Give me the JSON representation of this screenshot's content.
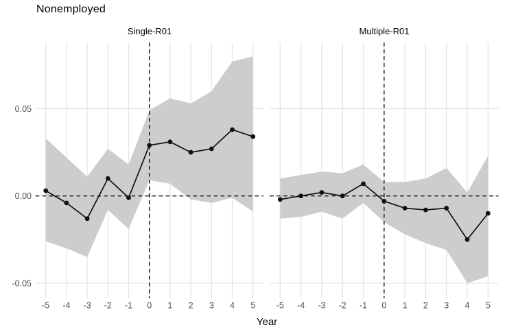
{
  "title": "Nonemployed",
  "xlabel": "Year",
  "colors": {
    "background": "#ffffff",
    "ribbon": "#cdcdcd",
    "line": "#111111",
    "point": "#111111",
    "grid": "#e5e5e5",
    "axis_text": "#4d4d4d",
    "label_text": "#000000",
    "reference_line": "#111111"
  },
  "axis": {
    "x_tick_labels": [
      "-5",
      "-4",
      "-3",
      "-2",
      "-1",
      "0",
      "1",
      "2",
      "3",
      "4",
      "5"
    ],
    "y_tick_labels": [
      "0.05",
      "0.00",
      "-0.05"
    ],
    "y_tick_values": [
      0.05,
      0,
      -0.05
    ],
    "xlim": [
      -5.5,
      5.5
    ],
    "ylim": [
      -0.0585,
      0.0875
    ],
    "grid": "major-only",
    "legend": "none"
  },
  "chart_data": [
    {
      "type": "line",
      "panel": "Single-R01",
      "x": [
        -5,
        -4,
        -3,
        -2,
        -1,
        0,
        1,
        2,
        3,
        4,
        5
      ],
      "estimate": [
        0.003,
        -0.004,
        -0.013,
        0.01,
        -0.001,
        0.029,
        0.031,
        0.025,
        0.027,
        0.038,
        0.034
      ],
      "ci_lower": [
        -0.026,
        -0.03,
        -0.035,
        -0.008,
        -0.019,
        0.009,
        0.007,
        -0.002,
        -0.004,
        -0.001,
        -0.009
      ],
      "ci_upper": [
        0.033,
        0.022,
        0.011,
        0.027,
        0.018,
        0.049,
        0.056,
        0.053,
        0.06,
        0.077,
        0.08
      ],
      "vline_x": 0,
      "hline_y": 0
    },
    {
      "type": "line",
      "panel": "Multiple-R01",
      "x": [
        -5,
        -4,
        -3,
        -2,
        -1,
        0,
        1,
        2,
        3,
        4,
        5
      ],
      "estimate": [
        -0.002,
        0.0,
        0.002,
        0.0,
        0.007,
        -0.003,
        -0.007,
        -0.008,
        -0.007,
        -0.025,
        -0.01
      ],
      "ci_lower": [
        -0.013,
        -0.012,
        -0.009,
        -0.013,
        -0.004,
        -0.015,
        -0.022,
        -0.027,
        -0.031,
        -0.05,
        -0.046
      ],
      "ci_upper": [
        0.01,
        0.012,
        0.014,
        0.013,
        0.018,
        0.008,
        0.008,
        0.01,
        0.016,
        0.002,
        0.023
      ],
      "vline_x": 0,
      "hline_y": 0
    }
  ]
}
